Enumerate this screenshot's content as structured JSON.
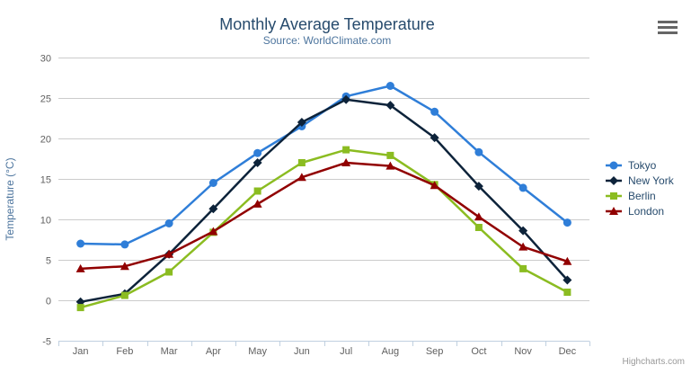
{
  "chart": {
    "title": "Monthly Average Temperature",
    "subtitle": "Source: WorldClimate.com",
    "credits": "Highcharts.com"
  },
  "chart_data": {
    "type": "line",
    "title": "Monthly Average Temperature",
    "subtitle": "Source: WorldClimate.com",
    "xlabel": "",
    "ylabel": "Temperature (°C)",
    "ylim": [
      -5,
      30
    ],
    "ytick_step": 5,
    "grid": true,
    "legend_position": "right",
    "categories": [
      "Jan",
      "Feb",
      "Mar",
      "Apr",
      "May",
      "Jun",
      "Jul",
      "Aug",
      "Sep",
      "Oct",
      "Nov",
      "Dec"
    ],
    "series": [
      {
        "name": "Tokyo",
        "color": "#2f7ed8",
        "marker": "circle",
        "values": [
          7.0,
          6.9,
          9.5,
          14.5,
          18.2,
          21.5,
          25.2,
          26.5,
          23.3,
          18.3,
          13.9,
          9.6
        ]
      },
      {
        "name": "New York",
        "color": "#0d233a",
        "marker": "diamond",
        "values": [
          -0.2,
          0.8,
          5.7,
          11.3,
          17.0,
          22.0,
          24.8,
          24.1,
          20.1,
          14.1,
          8.6,
          2.5
        ]
      },
      {
        "name": "Berlin",
        "color": "#8bbc21",
        "marker": "square",
        "values": [
          -0.9,
          0.6,
          3.5,
          8.4,
          13.5,
          17.0,
          18.6,
          17.9,
          14.3,
          9.0,
          3.9,
          1.0
        ]
      },
      {
        "name": "London",
        "color": "#910000",
        "marker": "triangle",
        "values": [
          3.9,
          4.2,
          5.7,
          8.5,
          11.9,
          15.2,
          17.0,
          16.6,
          14.2,
          10.3,
          6.6,
          4.8
        ]
      }
    ]
  },
  "colors": {
    "title": "#274b6d",
    "subtitle": "#4d759e",
    "axis_title": "#4d759e",
    "axis_labels": "#606060",
    "axis_line": "#c0d0e0",
    "grid_line": "#cccccc",
    "legend_text": "#274b6d",
    "credits_text": "#999999",
    "export_icon": "#666666",
    "background": "#ffffff"
  }
}
